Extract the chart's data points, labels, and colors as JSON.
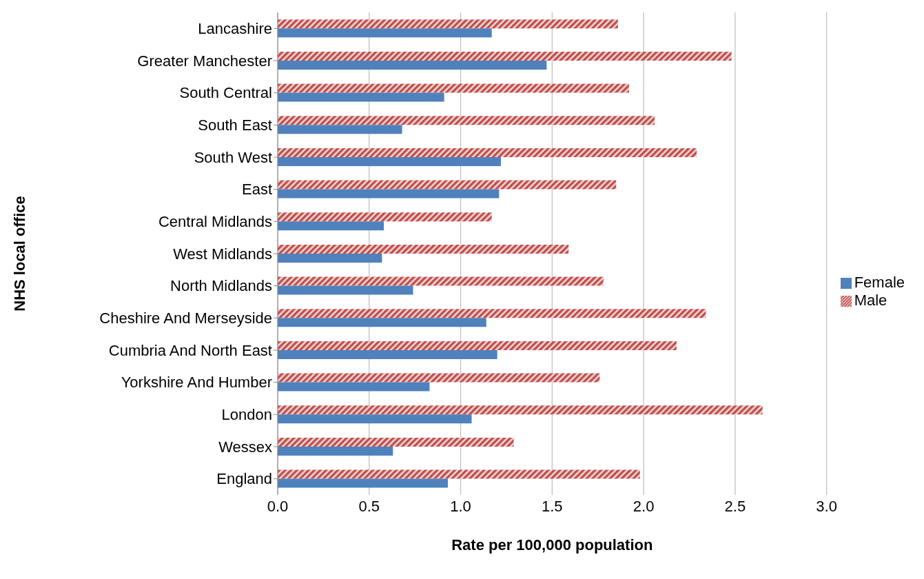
{
  "chart_data": {
    "type": "bar",
    "orientation": "horizontal",
    "xlabel": "Rate per 100,000 population",
    "ylabel": "NHS local office",
    "categories": [
      "Lancashire",
      "Greater Manchester",
      "South Central",
      "South East",
      "South West",
      "East",
      "Central Midlands",
      "West Midlands",
      "North Midlands",
      "Cheshire And Merseyside",
      "Cumbria And North East",
      "Yorkshire And Humber",
      "London",
      "Wessex",
      "England"
    ],
    "series": [
      {
        "name": "Male",
        "color": "#c0504d",
        "values": [
          1.86,
          2.48,
          1.92,
          2.06,
          2.29,
          1.85,
          1.17,
          1.59,
          1.78,
          2.34,
          2.18,
          1.76,
          2.65,
          1.29,
          1.98
        ]
      },
      {
        "name": "Female",
        "color": "#4f81bd",
        "values": [
          1.17,
          1.47,
          0.91,
          0.68,
          1.22,
          1.21,
          0.58,
          0.57,
          0.74,
          1.14,
          1.2,
          0.83,
          1.06,
          0.63,
          0.93
        ]
      }
    ],
    "xlim": [
      0,
      3
    ],
    "xticks": [
      {
        "value": 0,
        "label": "0.0"
      },
      {
        "value": 0.5,
        "label": "0.5"
      },
      {
        "value": 1,
        "label": "1.0"
      },
      {
        "value": 1.5,
        "label": "1.5"
      },
      {
        "value": 2,
        "label": "2.0"
      },
      {
        "value": 2.5,
        "label": "2.5"
      },
      {
        "value": 3,
        "label": "3.0"
      }
    ],
    "grid": "x",
    "legend": "right"
  }
}
